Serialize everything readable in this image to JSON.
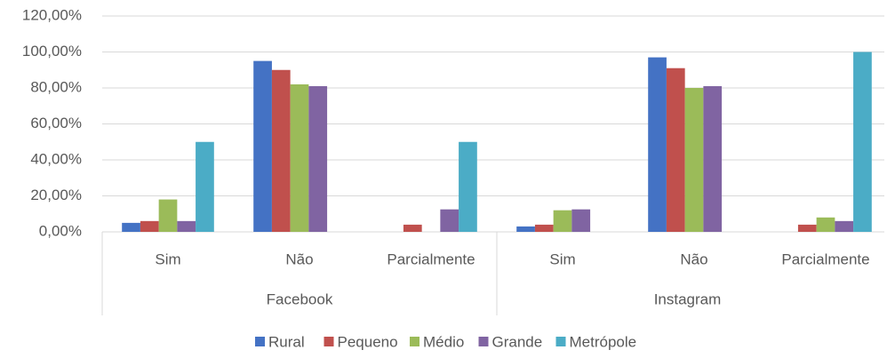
{
  "chart_data": {
    "type": "bar",
    "groups": [
      {
        "name": "Facebook",
        "categories": [
          "Sim",
          "Não",
          "Parcialmente"
        ]
      },
      {
        "name": "Instagram",
        "categories": [
          "Sim",
          "Não",
          "Parcialmente"
        ]
      }
    ],
    "series": [
      {
        "name": "Rural",
        "color": "#4472c4",
        "values": [
          5,
          95,
          0,
          3,
          97,
          0
        ]
      },
      {
        "name": "Pequeno",
        "color": "#c0504d",
        "values": [
          6,
          90,
          4,
          4,
          91,
          4
        ]
      },
      {
        "name": "Médio",
        "color": "#9bbb59",
        "values": [
          18,
          82,
          0,
          12,
          80,
          8
        ]
      },
      {
        "name": "Grande",
        "color": "#8064a2",
        "values": [
          6,
          81,
          12.5,
          12.5,
          81,
          6
        ]
      },
      {
        "name": "Metrópole",
        "color": "#4bacc6",
        "values": [
          50,
          0,
          50,
          0,
          0,
          100
        ]
      }
    ],
    "ylim": [
      0,
      120
    ],
    "yticks": [
      {
        "value": 0,
        "label": "0,00%"
      },
      {
        "value": 20,
        "label": "20,00%"
      },
      {
        "value": 40,
        "label": "40,00%"
      },
      {
        "value": 60,
        "label": "60,00%"
      },
      {
        "value": 80,
        "label": "80,00%"
      },
      {
        "value": 100,
        "label": "100,00%"
      },
      {
        "value": 120,
        "label": "120,00%"
      }
    ],
    "grid": true,
    "legend": "bottom"
  }
}
